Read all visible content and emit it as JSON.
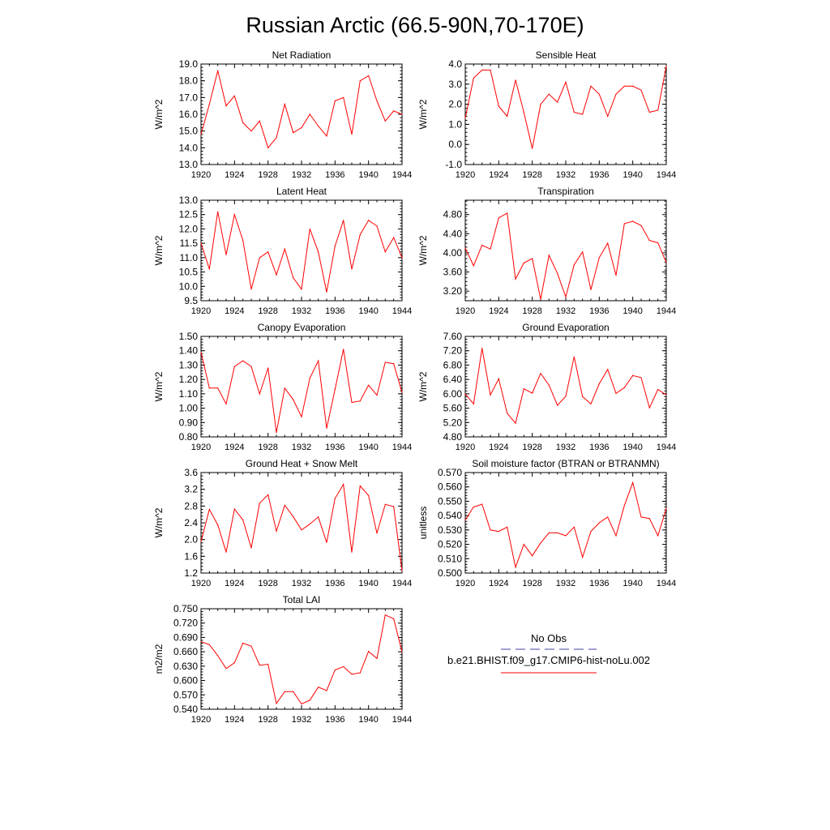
{
  "figure_title": "Russian Arctic (66.5-90N,70-170E)",
  "colors": {
    "series": "#ff0000",
    "obs": "#4040a0",
    "axis": "#000000"
  },
  "legend": {
    "obs_label": "No Obs",
    "model_label": "b.e21.BHIST.f09_g17.CMIP6-hist-noLu.002"
  },
  "chart_data": [
    {
      "type": "line",
      "title": "Net Radiation",
      "ylabel": "W/m^2",
      "x": [
        1920,
        1921,
        1922,
        1923,
        1924,
        1925,
        1926,
        1927,
        1928,
        1929,
        1930,
        1931,
        1932,
        1933,
        1934,
        1935,
        1936,
        1937,
        1938,
        1939,
        1940,
        1941,
        1942,
        1943,
        1944
      ],
      "values": [
        14.8,
        16.6,
        18.6,
        16.5,
        17.1,
        15.5,
        15.0,
        15.6,
        14.0,
        14.6,
        16.6,
        14.9,
        15.2,
        16.0,
        15.3,
        14.7,
        16.8,
        17.0,
        14.8,
        18.0,
        18.3,
        16.8,
        15.6,
        16.2,
        16.0
      ],
      "ylim": [
        13.0,
        19.0
      ],
      "yticks": [
        "13.0",
        "14.0",
        "15.0",
        "16.0",
        "17.0",
        "18.0",
        "19.0"
      ],
      "xticks": [
        "1920",
        "1924",
        "1928",
        "1932",
        "1936",
        "1940",
        "1944"
      ]
    },
    {
      "type": "line",
      "title": "Sensible Heat",
      "ylabel": "W/m^2",
      "x": [
        1920,
        1921,
        1922,
        1923,
        1924,
        1925,
        1926,
        1927,
        1928,
        1929,
        1930,
        1931,
        1932,
        1933,
        1934,
        1935,
        1936,
        1937,
        1938,
        1939,
        1940,
        1941,
        1942,
        1943,
        1944
      ],
      "values": [
        1.3,
        3.3,
        3.7,
        3.7,
        1.9,
        1.4,
        3.2,
        1.6,
        -0.2,
        2.0,
        2.5,
        2.1,
        3.1,
        1.6,
        1.5,
        2.9,
        2.5,
        1.4,
        2.5,
        2.9,
        2.9,
        2.7,
        1.6,
        1.7,
        3.9
      ],
      "ylim": [
        -1.0,
        4.0
      ],
      "yticks": [
        "-1.0",
        "0.0",
        "1.0",
        "2.0",
        "3.0",
        "4.0"
      ],
      "xticks": [
        "1920",
        "1924",
        "1928",
        "1932",
        "1936",
        "1940",
        "1944"
      ]
    },
    {
      "type": "line",
      "title": "Latent Heat",
      "ylabel": "W/m^2",
      "x": [
        1920,
        1921,
        1922,
        1923,
        1924,
        1925,
        1926,
        1927,
        1928,
        1929,
        1930,
        1931,
        1932,
        1933,
        1934,
        1935,
        1936,
        1937,
        1938,
        1939,
        1940,
        1941,
        1942,
        1943,
        1944
      ],
      "values": [
        11.5,
        10.6,
        12.6,
        11.1,
        12.5,
        11.6,
        9.9,
        11.0,
        11.2,
        10.4,
        11.3,
        10.3,
        9.9,
        12.0,
        11.2,
        9.8,
        11.4,
        12.3,
        10.6,
        11.8,
        12.3,
        12.1,
        11.2,
        11.7,
        11.0
      ],
      "ylim": [
        9.5,
        13.0
      ],
      "yticks": [
        "9.5",
        "10.0",
        "10.5",
        "11.0",
        "11.5",
        "12.0",
        "12.5",
        "13.0"
      ],
      "xticks": [
        "1920",
        "1924",
        "1928",
        "1932",
        "1936",
        "1940",
        "1944"
      ]
    },
    {
      "type": "line",
      "title": "Transpiration",
      "ylabel": "W/m^2",
      "x": [
        1920,
        1921,
        1922,
        1923,
        1924,
        1925,
        1926,
        1927,
        1928,
        1929,
        1930,
        1931,
        1932,
        1933,
        1934,
        1935,
        1936,
        1937,
        1938,
        1939,
        1940,
        1941,
        1942,
        1943,
        1944
      ],
      "values": [
        4.1,
        3.73,
        4.16,
        4.08,
        4.73,
        4.83,
        3.45,
        3.79,
        3.88,
        3.03,
        3.95,
        3.57,
        3.08,
        3.75,
        4.02,
        3.23,
        3.9,
        4.2,
        3.53,
        4.61,
        4.66,
        4.57,
        4.26,
        4.21,
        3.8
      ],
      "ylim": [
        3.0,
        5.1
      ],
      "yticks": [
        "3.20",
        "3.60",
        "4.00",
        "4.40",
        "4.80"
      ],
      "xticks": [
        "1920",
        "1924",
        "1928",
        "1932",
        "1936",
        "1940",
        "1944"
      ]
    },
    {
      "type": "line",
      "title": "Canopy Evaporation",
      "ylabel": "W/m^2",
      "x": [
        1920,
        1921,
        1922,
        1923,
        1924,
        1925,
        1926,
        1927,
        1928,
        1929,
        1930,
        1931,
        1932,
        1933,
        1934,
        1935,
        1936,
        1937,
        1938,
        1939,
        1940,
        1941,
        1942,
        1943,
        1944
      ],
      "values": [
        1.39,
        1.14,
        1.14,
        1.03,
        1.29,
        1.33,
        1.29,
        1.1,
        1.28,
        0.83,
        1.14,
        1.06,
        0.94,
        1.21,
        1.33,
        0.86,
        1.13,
        1.41,
        1.04,
        1.05,
        1.16,
        1.09,
        1.32,
        1.31,
        1.11
      ],
      "ylim": [
        0.8,
        1.5
      ],
      "yticks": [
        "0.80",
        "0.90",
        "1.00",
        "1.10",
        "1.20",
        "1.30",
        "1.40",
        "1.50"
      ],
      "xticks": [
        "1920",
        "1924",
        "1928",
        "1932",
        "1936",
        "1940",
        "1944"
      ]
    },
    {
      "type": "line",
      "title": "Ground Evaporation",
      "ylabel": "W/m^2",
      "x": [
        1920,
        1921,
        1922,
        1923,
        1924,
        1925,
        1926,
        1927,
        1928,
        1929,
        1930,
        1931,
        1932,
        1933,
        1934,
        1935,
        1936,
        1937,
        1938,
        1939,
        1940,
        1941,
        1942,
        1943,
        1944
      ],
      "values": [
        6.0,
        5.72,
        7.27,
        5.97,
        6.42,
        5.46,
        5.18,
        6.14,
        6.02,
        6.57,
        6.24,
        5.68,
        5.93,
        7.03,
        5.92,
        5.72,
        6.28,
        6.68,
        6.01,
        6.17,
        6.51,
        6.45,
        5.61,
        6.12,
        5.97
      ],
      "ylim": [
        4.8,
        7.6
      ],
      "yticks": [
        "4.80",
        "5.20",
        "5.60",
        "6.00",
        "6.40",
        "6.80",
        "7.20",
        "7.60"
      ],
      "xticks": [
        "1920",
        "1924",
        "1928",
        "1932",
        "1936",
        "1940",
        "1944"
      ]
    },
    {
      "type": "line",
      "title": "Ground Heat + Snow Melt",
      "ylabel": "W/m^2",
      "x": [
        1920,
        1921,
        1922,
        1923,
        1924,
        1925,
        1926,
        1927,
        1928,
        1929,
        1930,
        1931,
        1932,
        1933,
        1934,
        1935,
        1936,
        1937,
        1938,
        1939,
        1940,
        1941,
        1942,
        1943,
        1944
      ],
      "values": [
        1.95,
        2.72,
        2.35,
        1.7,
        2.73,
        2.47,
        1.8,
        2.87,
        3.07,
        2.2,
        2.82,
        2.55,
        2.23,
        2.37,
        2.54,
        1.93,
        2.98,
        3.32,
        1.7,
        3.28,
        3.05,
        2.15,
        2.84,
        2.79,
        1.25
      ],
      "ylim": [
        1.2,
        3.6
      ],
      "yticks": [
        "1.2",
        "1.6",
        "2.0",
        "2.4",
        "2.8",
        "3.2",
        "3.6"
      ],
      "xticks": [
        "1920",
        "1924",
        "1928",
        "1932",
        "1936",
        "1940",
        "1944"
      ]
    },
    {
      "type": "line",
      "title": "Soil moisture factor (BTRAN or BTRANMN)",
      "ylabel": "unitless",
      "x": [
        1920,
        1921,
        1922,
        1923,
        1924,
        1925,
        1926,
        1927,
        1928,
        1929,
        1930,
        1931,
        1932,
        1933,
        1934,
        1935,
        1936,
        1937,
        1938,
        1939,
        1940,
        1941,
        1942,
        1943,
        1944
      ],
      "values": [
        0.537,
        0.546,
        0.548,
        0.53,
        0.529,
        0.532,
        0.504,
        0.52,
        0.512,
        0.521,
        0.528,
        0.528,
        0.526,
        0.532,
        0.511,
        0.529,
        0.535,
        0.539,
        0.526,
        0.547,
        0.563,
        0.539,
        0.538,
        0.526,
        0.545
      ],
      "ylim": [
        0.5,
        0.57
      ],
      "yticks": [
        "0.500",
        "0.510",
        "0.520",
        "0.530",
        "0.540",
        "0.550",
        "0.560",
        "0.570"
      ],
      "xticks": [
        "1920",
        "1924",
        "1928",
        "1932",
        "1936",
        "1940",
        "1944"
      ]
    },
    {
      "type": "line",
      "title": "Total LAI",
      "ylabel": "m2/m2",
      "x": [
        1920,
        1921,
        1922,
        1923,
        1924,
        1925,
        1926,
        1927,
        1928,
        1929,
        1930,
        1931,
        1932,
        1933,
        1934,
        1935,
        1936,
        1937,
        1938,
        1939,
        1940,
        1941,
        1942,
        1943,
        1944
      ],
      "values": [
        0.681,
        0.675,
        0.652,
        0.625,
        0.637,
        0.678,
        0.672,
        0.632,
        0.634,
        0.552,
        0.577,
        0.577,
        0.551,
        0.559,
        0.586,
        0.579,
        0.622,
        0.629,
        0.613,
        0.616,
        0.661,
        0.646,
        0.737,
        0.729,
        0.66
      ],
      "ylim": [
        0.54,
        0.75
      ],
      "yticks": [
        "0.540",
        "0.570",
        "0.600",
        "0.630",
        "0.660",
        "0.690",
        "0.720",
        "0.750"
      ],
      "xticks": [
        "1920",
        "1924",
        "1928",
        "1932",
        "1936",
        "1940",
        "1944"
      ]
    }
  ]
}
